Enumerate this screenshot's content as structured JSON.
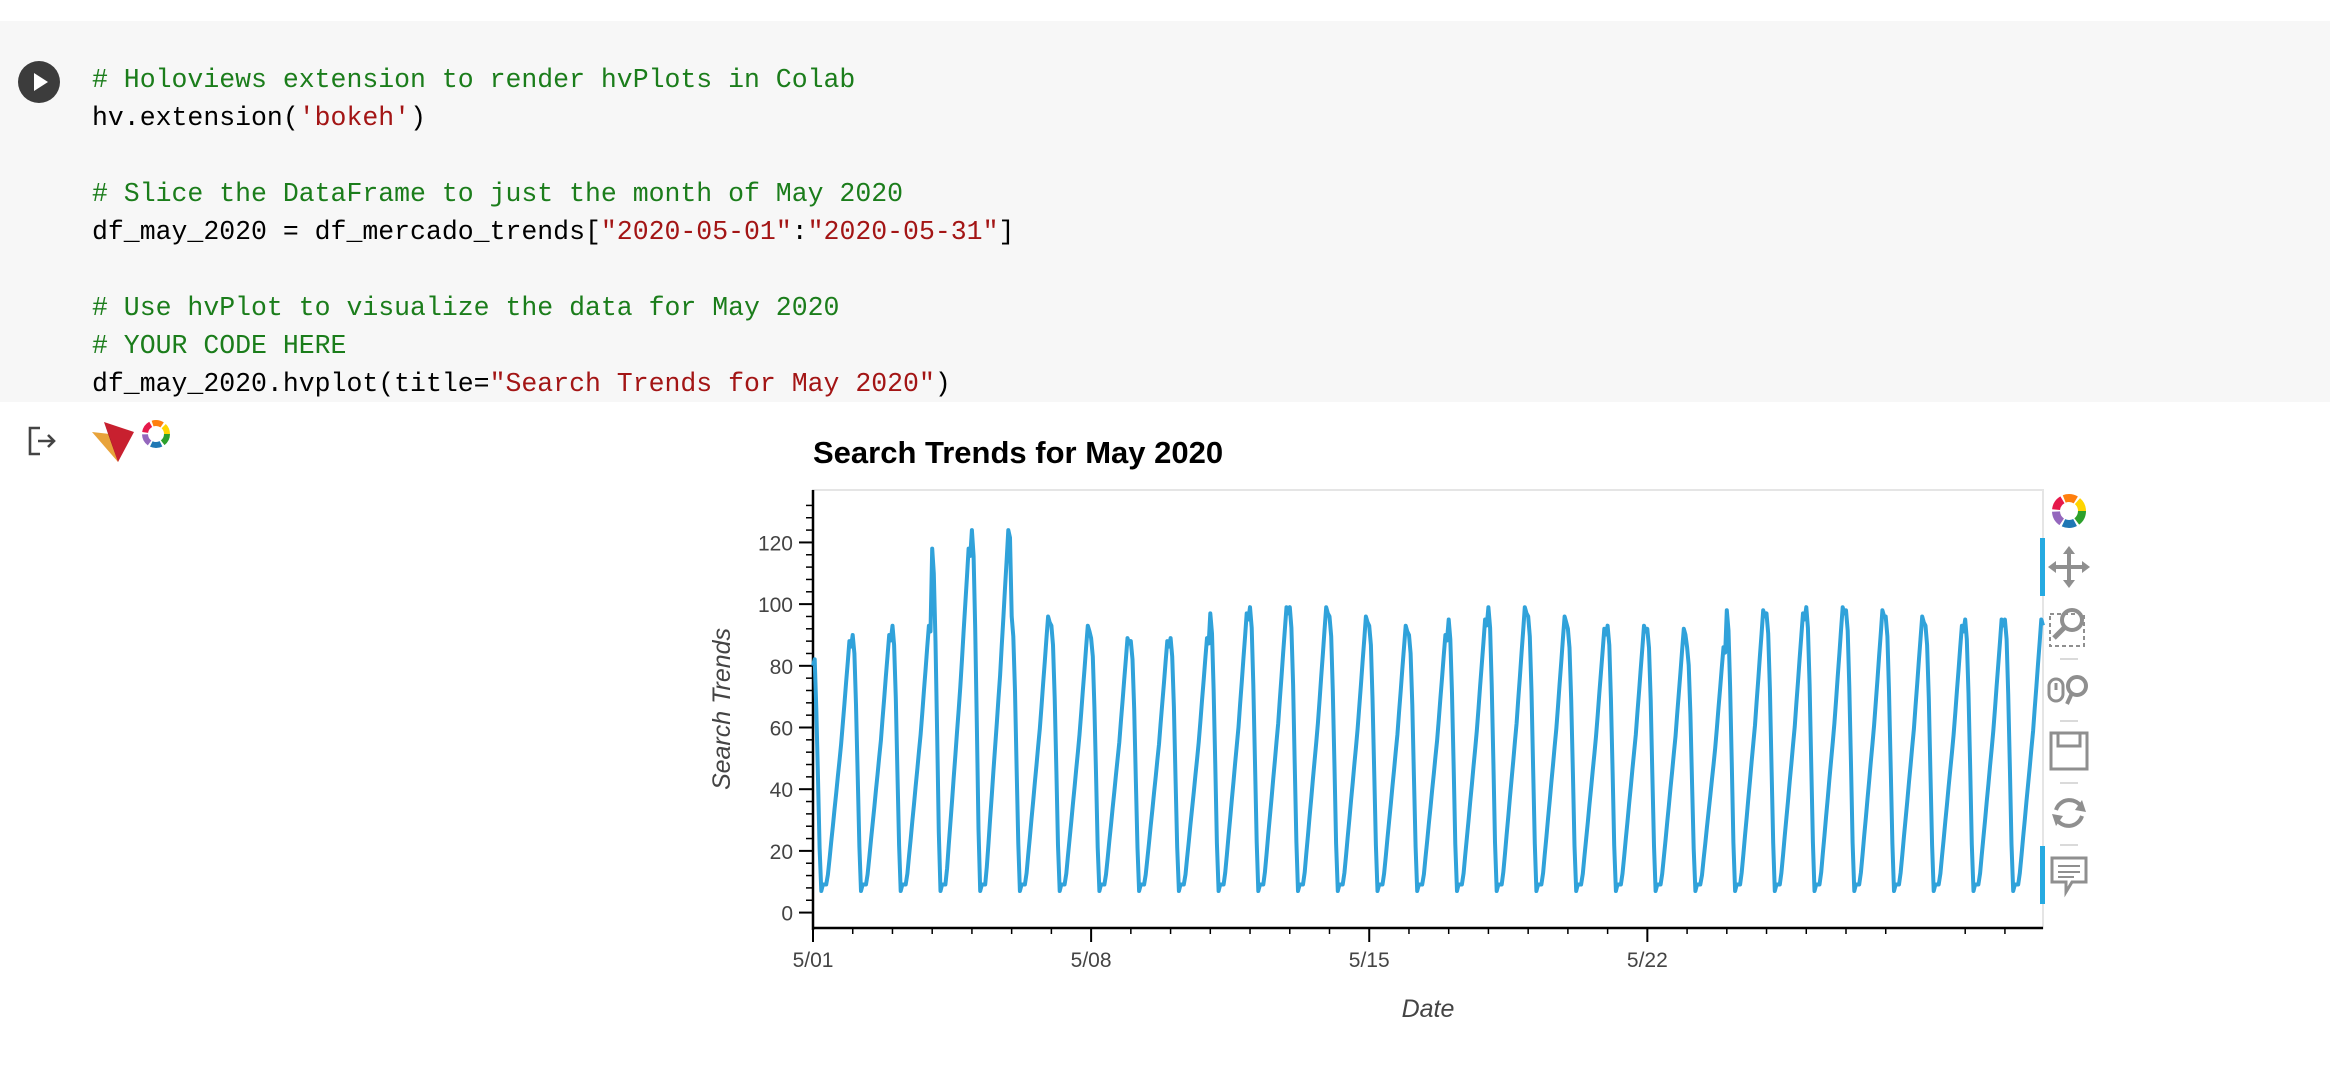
{
  "code_cell": {
    "lines": [
      {
        "comment": "# Holoviews extension to render hvPlots in Colab"
      },
      {
        "pre": "hv.extension(",
        "str": "'bokeh'",
        "post": ")"
      },
      {},
      {
        "comment": "# Slice the DataFrame to just the month of May 2020"
      },
      {
        "pre": "df_may_2020 = df_mercado_trends[",
        "str": "\"2020-05-01\"",
        "mid": ":",
        "str2": "\"2020-05-31\"",
        "post": "]"
      },
      {},
      {
        "comment": "# Use hvPlot to visualize the data for May 2020"
      },
      {
        "comment": "# YOUR CODE HERE"
      },
      {
        "pre": "df_may_2020.hvplot(title=",
        "str": "\"Search Trends for May 2020\"",
        "post": ")"
      }
    ]
  },
  "icons": {
    "run": "play-icon",
    "output": "output-icon",
    "logo": "holoviz-logo-icon",
    "tools": [
      "bokeh-logo-icon",
      "pan-icon",
      "box-zoom-icon",
      "wheel-zoom-icon",
      "save-icon",
      "reset-icon",
      "hover-icon"
    ]
  },
  "colors": {
    "line": "#30a2da",
    "comment": "#1b7d1b",
    "string": "#a31515"
  },
  "chart_data": {
    "type": "line",
    "title": "Search Trends for May 2020",
    "xlabel": "Date",
    "ylabel": "Search Trends",
    "x_ticks": [
      "5/01",
      "5/08",
      "5/15",
      "5/22"
    ],
    "y_ticks": [
      0,
      20,
      40,
      60,
      80,
      100,
      120
    ],
    "ylim": [
      -5,
      137
    ],
    "xlim": [
      "2020-05-01 00:00",
      "2020-05-31 23:00"
    ],
    "grid": false,
    "series": [
      {
        "x_start": "2020-05-01 00:00",
        "x_step_hours": 1,
        "daily_peaks": [
          88,
          90,
          93,
          118,
          124,
          96,
          93,
          89,
          88,
          89,
          97,
          99,
          99,
          96,
          93,
          90,
          95,
          99,
          96,
          92,
          93,
          92,
          86,
          98,
          97,
          99,
          98,
          96,
          93,
          95,
          95
        ],
        "first_value": 80,
        "daily_low": 7
      }
    ]
  }
}
